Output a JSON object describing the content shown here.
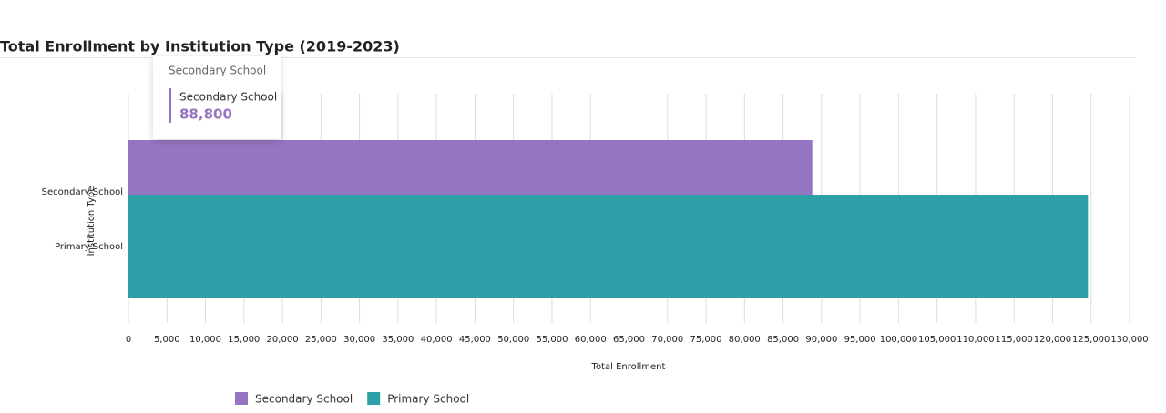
{
  "chart_data": {
    "type": "bar",
    "orientation": "horizontal",
    "title": "Total Enrollment by Institution Type (2019-2023)",
    "x_label": "Total Enrollment",
    "y_label": "Institution Type",
    "categories": [
      "Secondary School",
      "Primary School"
    ],
    "series": [
      {
        "name": "Secondary School",
        "color": "#9575c1",
        "values": [
          88800,
          null
        ]
      },
      {
        "name": "Primary School",
        "color": "#2ca0a6",
        "values": [
          null,
          124600
        ]
      }
    ],
    "xlim": [
      0,
      130000
    ],
    "xticks": [
      0,
      {
        "value": 5000,
        "label": "5,000"
      },
      {
        "value": 10000,
        "label": "10,000"
      },
      {
        "value": 15000,
        "label": "15,000"
      },
      {
        "value": 20000,
        "label": "20,000"
      },
      {
        "value": 25000,
        "label": "25,000"
      },
      {
        "value": 30000,
        "label": "30,000"
      },
      {
        "value": 35000,
        "label": "35,000"
      },
      {
        "value": 40000,
        "label": "40,000"
      },
      {
        "value": 45000,
        "label": "45,000"
      },
      {
        "value": 50000,
        "label": "50,000"
      },
      {
        "value": 55000,
        "label": "55,000"
      },
      {
        "value": 60000,
        "label": "60,000"
      },
      {
        "value": 65000,
        "label": "65,000"
      },
      {
        "value": 70000,
        "label": "70,000"
      },
      {
        "value": 75000,
        "label": "75,000"
      },
      {
        "value": 80000,
        "label": "80,000"
      },
      {
        "value": 85000,
        "label": "85,000"
      },
      {
        "value": 90000,
        "label": "90,000"
      },
      {
        "value": 95000,
        "label": "95,000"
      },
      {
        "value": 100000,
        "label": "100,000"
      },
      {
        "value": 105000,
        "label": "105,000"
      },
      {
        "value": 110000,
        "label": "110,000"
      },
      {
        "value": 115000,
        "label": "115,000"
      },
      {
        "value": 120000,
        "label": "120,000"
      },
      {
        "value": 125000,
        "label": "125,000"
      },
      {
        "value": 130000,
        "label": "130,000"
      }
    ],
    "grid": true,
    "legend": "bottom",
    "tooltip": {
      "title": "Secondary School",
      "series": "Secondary School",
      "value": 88800,
      "value_label": "88,800"
    }
  }
}
